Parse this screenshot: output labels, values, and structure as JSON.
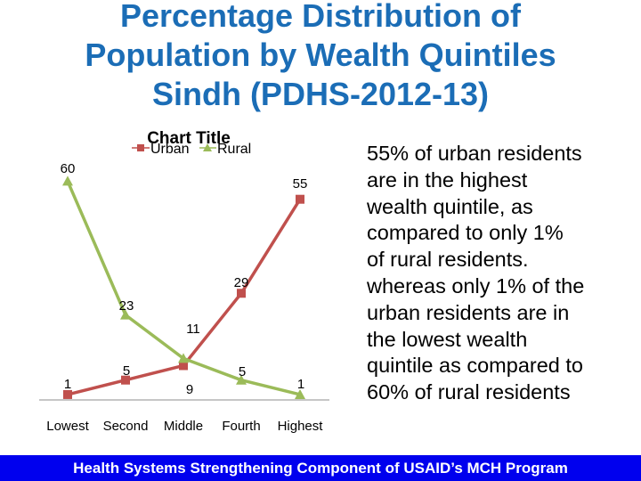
{
  "slide": {
    "title_lines": [
      "Percentage Distribution of",
      "Population by Wealth Quintiles",
      "Sindh (PDHS-2012-13)"
    ],
    "description_lines": [
      "55% of urban residents",
      "are in the highest",
      "wealth quintile, as",
      "compared to only 1%",
      "of rural residents.",
      "whereas only 1% of the",
      "urban residents are in",
      "the lowest wealth",
      "quintile as compared to",
      "60% of rural residents"
    ],
    "footer": "Health Systems Strengthening Component of USAID’s MCH Program",
    "colors": {
      "title": "#1b6db6",
      "footer_bg": "#0000ee",
      "urban": "#c0504d",
      "rural": "#9bbb59"
    }
  },
  "chart_data": {
    "type": "line",
    "title": "Chart Title",
    "categories": [
      "Lowest",
      "Second",
      "Middle",
      "Fourth",
      "Highest"
    ],
    "series": [
      {
        "name": "Urban",
        "marker": "square",
        "color": "#c0504d",
        "values": [
          1,
          5,
          9,
          29,
          55
        ]
      },
      {
        "name": "Rural",
        "marker": "triangle",
        "color": "#9bbb59",
        "values": [
          60,
          23,
          11,
          5,
          1
        ]
      }
    ],
    "xlabel": "",
    "ylabel": "",
    "ylim": [
      0,
      60
    ],
    "grid": false,
    "legend_position": "top",
    "data_labels": true
  }
}
